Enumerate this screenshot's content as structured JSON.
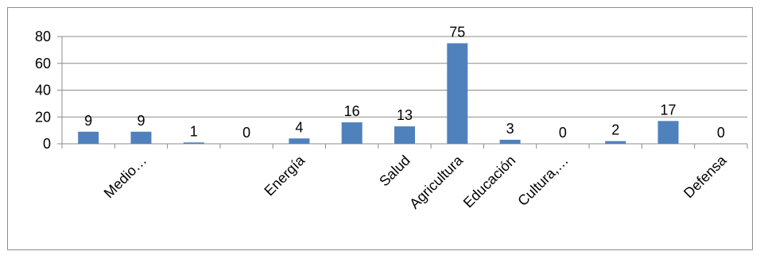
{
  "chart_data": {
    "type": "bar",
    "categories": [
      "",
      "Medio…",
      "",
      "",
      "Energía",
      "",
      "Salud",
      "Agricultura",
      "Educación",
      "Cultura,…",
      "",
      "",
      "Defensa"
    ],
    "values": [
      9,
      9,
      1,
      0,
      4,
      16,
      13,
      75,
      3,
      0,
      2,
      17,
      0
    ],
    "data_labels": [
      "9",
      "9",
      "1",
      "0",
      "4",
      "16",
      "13",
      "75",
      "3",
      "0",
      "2",
      "17",
      "0"
    ],
    "y_ticks": [
      "0",
      "20",
      "40",
      "60",
      "80"
    ],
    "ylim": [
      0,
      80
    ],
    "title": "",
    "xlabel": "",
    "ylabel": "",
    "grid": true,
    "legend": "none",
    "colors": {
      "bar": "#4f81bd",
      "grid": "#8c8c8c",
      "axis": "#8c8c8c",
      "frame": "#8c8c8c"
    }
  }
}
